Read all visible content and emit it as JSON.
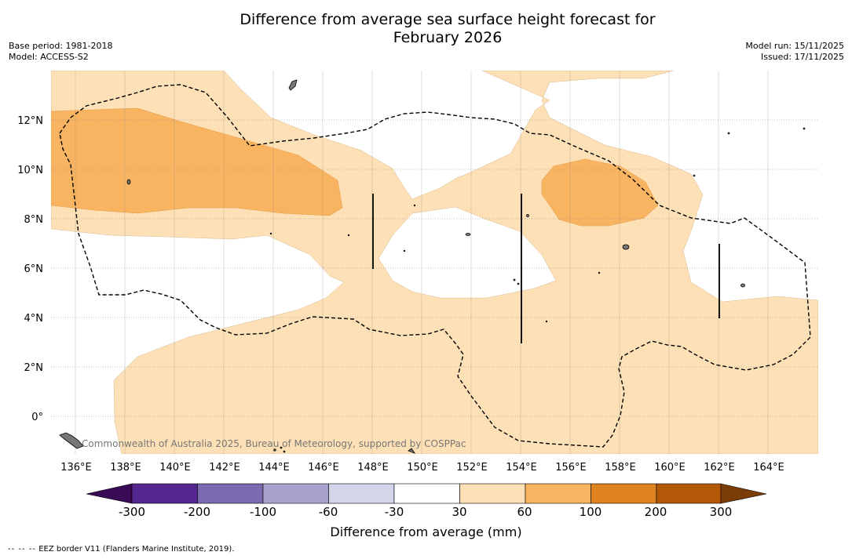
{
  "title": {
    "line1": "Difference from average sea surface height forecast for",
    "line2": "February 2026"
  },
  "meta": {
    "base_period": "Base period: 1981-2018",
    "model": "Model: ACCESS-S2",
    "model_run": "Model run: 15/11/2025",
    "issued": "Issued: 17/11/2025"
  },
  "map": {
    "lon_range": [
      135,
      166
    ],
    "lat_range": [
      -1.5,
      14
    ],
    "lon_ticks": [
      "136°E",
      "138°E",
      "140°E",
      "142°E",
      "144°E",
      "146°E",
      "148°E",
      "150°E",
      "152°E",
      "154°E",
      "156°E",
      "158°E",
      "160°E",
      "162°E",
      "164°E"
    ],
    "lat_ticks": [
      "12°N",
      "10°N",
      "8°N",
      "6°N",
      "4°N",
      "2°N",
      "0°"
    ],
    "copyright": "Commonwealth of Australia 2025, Bureau of Meteorology, supported by COSPPac",
    "colors": {
      "light_orange": "#fde0b5",
      "mid_orange": "#f9b461",
      "grid": "#888888",
      "land": "#777777"
    }
  },
  "colorbar": {
    "ticks": [
      "-300",
      "-200",
      "-100",
      "-60",
      "-30",
      "30",
      "60",
      "100",
      "200",
      "300"
    ],
    "colors": [
      "#3a0b55",
      "#54278f",
      "#7b6aaf",
      "#a8a3cd",
      "#d4d5ea",
      "#ffffff",
      "#fde0b5",
      "#f9b461",
      "#df8220",
      "#b35806",
      "#7a3d08"
    ],
    "label": "Difference from average (mm)"
  },
  "footnote": {
    "dashes": "--  --  --",
    "text": "EEZ border V11 (Flanders Marine Institute, 2019)."
  }
}
